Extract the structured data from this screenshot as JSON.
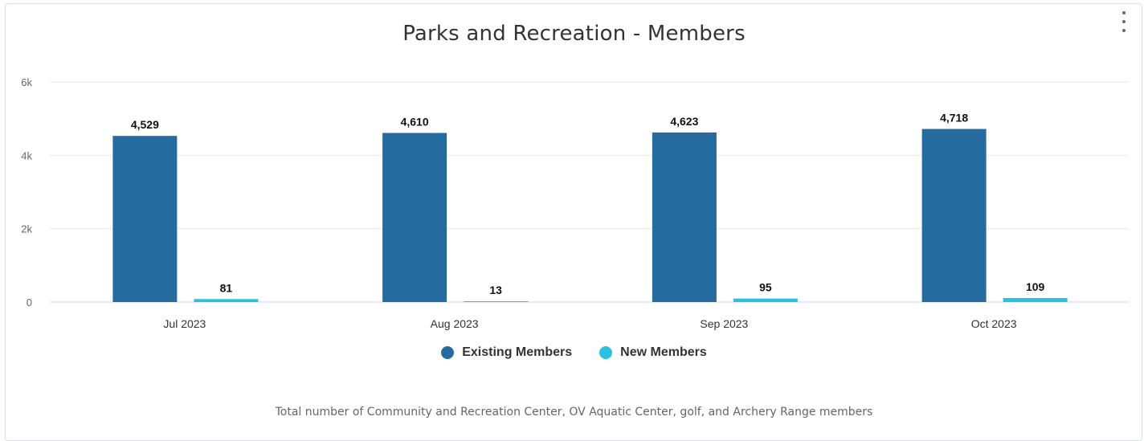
{
  "chart_data": {
    "type": "bar",
    "title": "Parks and Recreation - Members",
    "categories": [
      "Jul 2023",
      "Aug 2023",
      "Sep 2023",
      "Oct 2023"
    ],
    "series": [
      {
        "name": "Existing Members",
        "values": [
          4529,
          4610,
          4623,
          4718
        ],
        "labels": [
          "4,529",
          "4,610",
          "4,623",
          "4,718"
        ],
        "color": "#256b9f"
      },
      {
        "name": "New Members",
        "values": [
          81,
          13,
          95,
          109
        ],
        "labels": [
          "81",
          "13",
          "95",
          "109"
        ],
        "color": "#29c2de"
      }
    ],
    "yticks": [
      {
        "value": 0,
        "label": "0"
      },
      {
        "value": 2000,
        "label": "2k"
      },
      {
        "value": 4000,
        "label": "4k"
      },
      {
        "value": 6000,
        "label": "6k"
      }
    ],
    "ylim": [
      0,
      6000
    ],
    "grid": true,
    "legend_position": "bottom-center",
    "footnote": "Total number of Community and Recreation Center, OV Aquatic Center, golf, and Archery Range members"
  }
}
